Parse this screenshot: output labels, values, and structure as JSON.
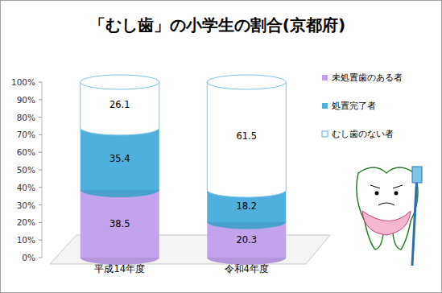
{
  "chart_data": {
    "type": "bar",
    "title": "「むし歯」の小学生の割合(京都府)",
    "categories": [
      "平成14年度",
      "令和4年度"
    ],
    "series": [
      {
        "name": "未処置歯のある者",
        "color": "#c3a3ee",
        "values": [
          38.5,
          20.3
        ]
      },
      {
        "name": "処置完了者",
        "color": "#4fb0de",
        "values": [
          35.4,
          18.2
        ]
      },
      {
        "name": "むし歯のない者",
        "color": "#ffffff",
        "values": [
          26.1,
          61.5
        ]
      }
    ],
    "stacked": true,
    "data_labels": true,
    "legend": "right",
    "grid": false,
    "ylim": [
      0,
      100
    ],
    "yticks": [
      {
        "value": 0,
        "label": "0%"
      },
      {
        "value": 10,
        "label": "10%"
      },
      {
        "value": 20,
        "label": "20%"
      },
      {
        "value": 30,
        "label": "30%"
      },
      {
        "value": 40,
        "label": "40%"
      },
      {
        "value": 50,
        "label": "50%"
      },
      {
        "value": 60,
        "label": "60%"
      },
      {
        "value": 70,
        "label": "70%"
      },
      {
        "value": 80,
        "label": "80%"
      },
      {
        "value": 90,
        "label": "90%"
      },
      {
        "value": 100,
        "label": "100%"
      }
    ]
  }
}
